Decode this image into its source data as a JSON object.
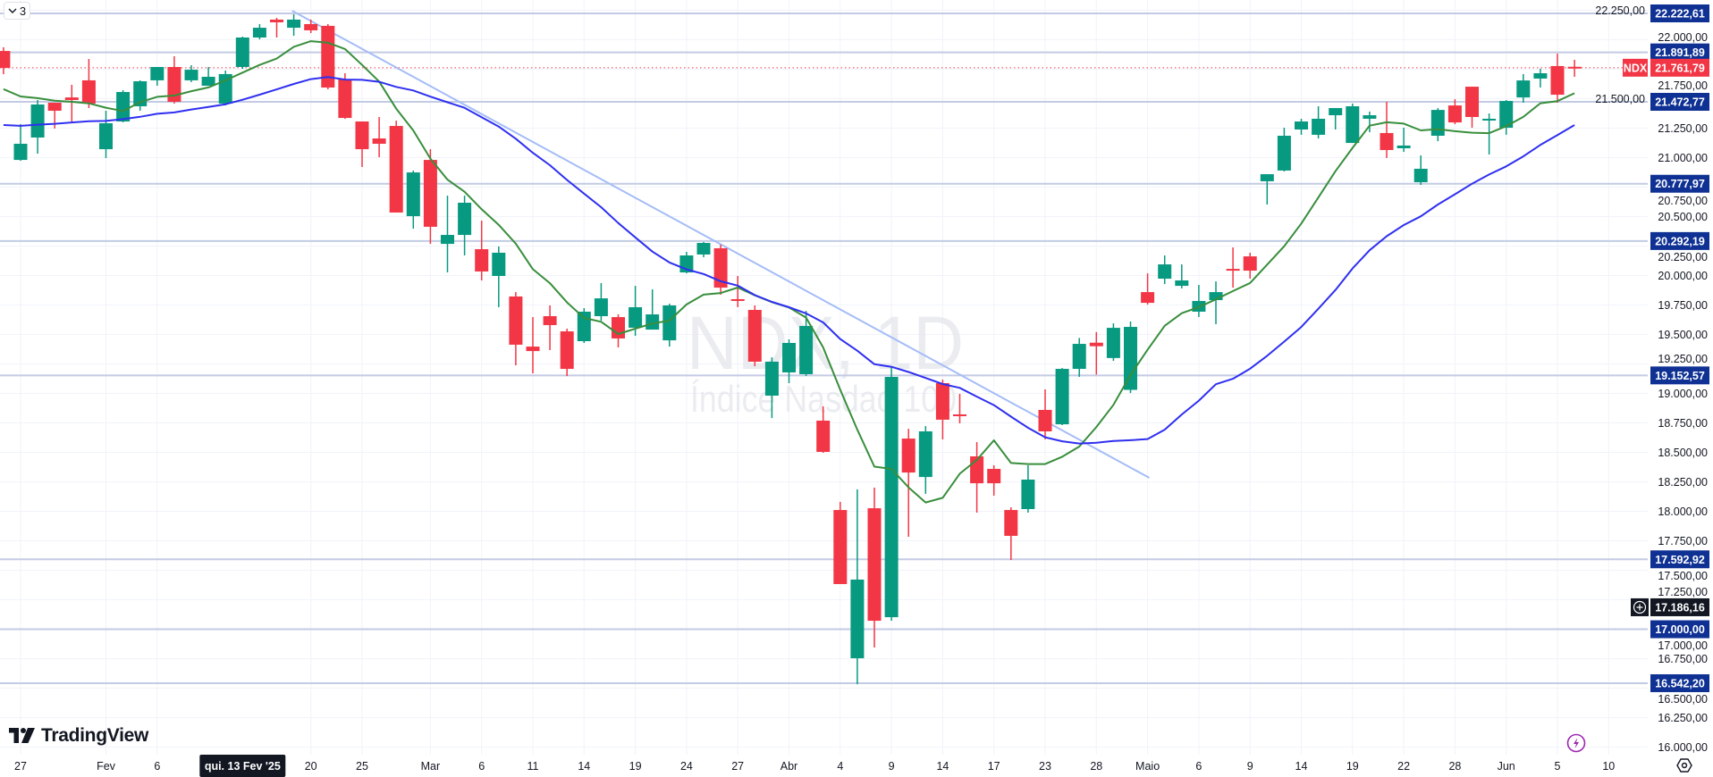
{
  "toolbar": {
    "interval_count": "3"
  },
  "brand": {
    "name": "TradingView"
  },
  "chart_data": {
    "type": "candlestick",
    "symbol": "NDX",
    "watermark_title": "NDX, 1D",
    "watermark_subtitle": "Índice Nasdaq 100",
    "colors": {
      "up": "#089981",
      "down": "#F23645",
      "level": "#0F3194",
      "ma_fast": "#388E3C",
      "ma_slow": "#2F2FF0",
      "trendline": "#A4BCF7"
    },
    "ylim": [
      15910,
      22340
    ],
    "first_index": -1,
    "candles_ohlc": [
      [
        21904,
        21935,
        21707,
        21760
      ],
      [
        20980,
        21283,
        20973,
        21117
      ],
      [
        21170,
        21488,
        21033,
        21450
      ],
      [
        21465,
        21465,
        21246,
        21397
      ],
      [
        21510,
        21617,
        21299,
        21488
      ],
      [
        21655,
        21836,
        21420,
        21458
      ],
      [
        21071,
        21397,
        20996,
        21291
      ],
      [
        21306,
        21571,
        21299,
        21556
      ],
      [
        21435,
        21655,
        21397,
        21647
      ],
      [
        21655,
        21768,
        21609,
        21768
      ],
      [
        21768,
        21859,
        21458,
        21473
      ],
      [
        21655,
        21783,
        21640,
        21745
      ],
      [
        21609,
        21768,
        21609,
        21685
      ],
      [
        21458,
        21738,
        21442,
        21708
      ],
      [
        21768,
        22026,
        21753,
        22018
      ],
      [
        22018,
        22132,
        22003,
        22101
      ],
      [
        22170,
        22185,
        22018,
        22147
      ],
      [
        22101,
        22215,
        22033,
        22170
      ],
      [
        22132,
        22170,
        22056,
        22079
      ],
      [
        22117,
        22132,
        21579,
        21594
      ],
      [
        21662,
        21715,
        21328,
        21336
      ],
      [
        21306,
        21306,
        20920,
        21071
      ],
      [
        21162,
        21344,
        21003,
        21117
      ],
      [
        21268,
        21313,
        20534,
        20534
      ],
      [
        20503,
        20890,
        20397,
        20874
      ],
      [
        20980,
        21071,
        20268,
        20413
      ],
      [
        20268,
        20677,
        20026,
        20344
      ],
      [
        20344,
        20677,
        20170,
        20617
      ],
      [
        20223,
        20465,
        19958,
        20034
      ],
      [
        19996,
        20246,
        19731,
        20193
      ],
      [
        19822,
        19859,
        19238,
        19413
      ],
      [
        19397,
        19647,
        19170,
        19359
      ],
      [
        19655,
        19746,
        19367,
        19579
      ],
      [
        19526,
        19549,
        19147,
        19208
      ],
      [
        19443,
        19723,
        19428,
        19693
      ],
      [
        19655,
        19935,
        19617,
        19806
      ],
      [
        19647,
        19670,
        19390,
        19466
      ],
      [
        19557,
        19912,
        19488,
        19731
      ],
      [
        19541,
        19882,
        19541,
        19670
      ],
      [
        19450,
        19761,
        19397,
        19746
      ],
      [
        20026,
        20200,
        20018,
        20170
      ],
      [
        20178,
        20284,
        20155,
        20276
      ],
      [
        20231,
        20261,
        19837,
        19897
      ],
      [
        19799,
        19996,
        19731,
        19791
      ],
      [
        19708,
        19746,
        19231,
        19269
      ],
      [
        18981,
        19306,
        18791,
        19269
      ],
      [
        19178,
        19458,
        19087,
        19428
      ],
      [
        19163,
        19700,
        19148,
        19572
      ],
      [
        18769,
        18890,
        18496,
        18504
      ],
      [
        18011,
        18080,
        17383,
        17383
      ],
      [
        16754,
        18186,
        16534,
        17421
      ],
      [
        18026,
        18201,
        16845,
        17072
      ],
      [
        17102,
        19223,
        17072,
        19140
      ],
      [
        18617,
        18700,
        17784,
        18329
      ],
      [
        18291,
        18723,
        18148,
        18678
      ],
      [
        19087,
        19117,
        18610,
        18777
      ],
      [
        18822,
        18996,
        18746,
        18815
      ],
      [
        18466,
        18587,
        17989,
        18238
      ],
      [
        18360,
        18390,
        18133,
        18238
      ],
      [
        18011,
        18034,
        17587,
        17792
      ],
      [
        18019,
        18390,
        17989,
        18269
      ],
      [
        18860,
        19034,
        18610,
        18678
      ],
      [
        18738,
        19215,
        18731,
        19208
      ],
      [
        19208,
        19470,
        19140,
        19420
      ],
      [
        19430,
        19520,
        19160,
        19400
      ],
      [
        19300,
        19594,
        19276,
        19556
      ],
      [
        19030,
        19610,
        19003,
        19564
      ],
      [
        19859,
        20018,
        19753,
        19768
      ],
      [
        19973,
        20170,
        19927,
        20094
      ],
      [
        19912,
        20094,
        19890,
        19958
      ],
      [
        19693,
        19920,
        19648,
        19784
      ],
      [
        19791,
        19950,
        19587,
        19859
      ],
      [
        20056,
        20238,
        19897,
        20050
      ],
      [
        20162,
        20193,
        19973,
        20041
      ],
      [
        20799,
        20859,
        20602,
        20859
      ],
      [
        20890,
        21253,
        20882,
        21185
      ],
      [
        21238,
        21329,
        21193,
        21306
      ],
      [
        21193,
        21435,
        21162,
        21329
      ],
      [
        21359,
        21420,
        21238,
        21420
      ],
      [
        21124,
        21458,
        21124,
        21435
      ],
      [
        21329,
        21390,
        21215,
        21359
      ],
      [
        21208,
        21473,
        20996,
        21064
      ],
      [
        21079,
        21253,
        21048,
        21102
      ],
      [
        20791,
        21018,
        20768,
        20905
      ],
      [
        21185,
        21420,
        21139,
        21404
      ],
      [
        21442,
        21495,
        21283,
        21298
      ],
      [
        21601,
        21601,
        21253,
        21344
      ],
      [
        21314,
        21374,
        21026,
        21329
      ],
      [
        21253,
        21488,
        21193,
        21480
      ],
      [
        21510,
        21708,
        21465,
        21654
      ],
      [
        21670,
        21753,
        21594,
        21715
      ],
      [
        21776,
        21882,
        21465,
        21533
      ],
      [
        21770,
        21829,
        21685,
        21762
      ]
    ],
    "indicators": [
      {
        "name": "ma_fast",
        "type": "sma",
        "period": 7,
        "seed": 21550
      },
      {
        "name": "ma_slow",
        "type": "sma",
        "period": 20,
        "seed": 21250
      }
    ],
    "trendline": {
      "start": [
        15.9,
        22245
      ],
      "end": [
        66.1,
        18284
      ]
    },
    "y_ticks": [
      {
        "value": 22250,
        "label": "22.250,00"
      },
      {
        "value": 22000,
        "label": "22.000,00"
      },
      {
        "value": 21750,
        "label": "21.750,00"
      },
      {
        "value": 21500,
        "label": "21.500,00"
      },
      {
        "value": 21250,
        "label": "21.250,00"
      },
      {
        "value": 21000,
        "label": "21.000,00"
      },
      {
        "value": 20750,
        "label": "20.750,00"
      },
      {
        "value": 20500,
        "label": "20.500,00"
      },
      {
        "value": 20250,
        "label": "20.250,00"
      },
      {
        "value": 20000,
        "label": "20.000,00"
      },
      {
        "value": 19750,
        "label": "19.750,00"
      },
      {
        "value": 19500,
        "label": "19.500,00"
      },
      {
        "value": 19250,
        "label": "19.250,00"
      },
      {
        "value": 19000,
        "label": "19.000,00"
      },
      {
        "value": 18750,
        "label": "18.750,00"
      },
      {
        "value": 18500,
        "label": "18.500,00"
      },
      {
        "value": 18250,
        "label": "18.250,00"
      },
      {
        "value": 18000,
        "label": "18.000,00"
      },
      {
        "value": 17750,
        "label": "17.750,00"
      },
      {
        "value": 17500,
        "label": "17.500,00"
      },
      {
        "value": 17250,
        "label": "17.250,00"
      },
      {
        "value": 17000,
        "label": "17.000,00"
      },
      {
        "value": 16750,
        "label": "16.750,00"
      },
      {
        "value": 16500,
        "label": "16.500,00"
      },
      {
        "value": 16250,
        "label": "16.250,00"
      },
      {
        "value": 16000,
        "label": "16.000,00"
      }
    ],
    "price_levels": [
      {
        "value": 22222.61,
        "label": "22.222,61"
      },
      {
        "value": 21891.89,
        "label": "21.891,89"
      },
      {
        "value": 21472.77,
        "label": "21.472,77"
      },
      {
        "value": 20777.97,
        "label": "20.777,97"
      },
      {
        "value": 20292.19,
        "label": "20.292,19"
      },
      {
        "value": 19152.57,
        "label": "19.152,57"
      },
      {
        "value": 17592.92,
        "label": "17.592,92"
      },
      {
        "value": 17000.0,
        "label": "17.000,00"
      },
      {
        "value": 16542.2,
        "label": "16.542,20"
      }
    ],
    "last_price": {
      "symbol": "NDX",
      "value": 21761.79,
      "label": "21.761,79"
    },
    "crosshair_price": {
      "value": 17186.16,
      "label": "17.186,16"
    },
    "x_ticks": [
      {
        "index": 0,
        "label": "27"
      },
      {
        "index": 5,
        "label": "Fev"
      },
      {
        "index": 8,
        "label": "6"
      },
      {
        "index": 17,
        "label": "20"
      },
      {
        "index": 20,
        "label": "25"
      },
      {
        "index": 24,
        "label": "Mar"
      },
      {
        "index": 27,
        "label": "6"
      },
      {
        "index": 30,
        "label": "11"
      },
      {
        "index": 33,
        "label": "14"
      },
      {
        "index": 36,
        "label": "19"
      },
      {
        "index": 39,
        "label": "24"
      },
      {
        "index": 42,
        "label": "27"
      },
      {
        "index": 45,
        "label": "Abr"
      },
      {
        "index": 48,
        "label": "4"
      },
      {
        "index": 51,
        "label": "9"
      },
      {
        "index": 54,
        "label": "14"
      },
      {
        "index": 57,
        "label": "17"
      },
      {
        "index": 60,
        "label": "23"
      },
      {
        "index": 63,
        "label": "28"
      },
      {
        "index": 66,
        "label": "Maio"
      },
      {
        "index": 69,
        "label": "6"
      },
      {
        "index": 72,
        "label": "9"
      },
      {
        "index": 75,
        "label": "14"
      },
      {
        "index": 78,
        "label": "19"
      },
      {
        "index": 81,
        "label": "22"
      },
      {
        "index": 84,
        "label": "28"
      },
      {
        "index": 87,
        "label": "Jun"
      },
      {
        "index": 90,
        "label": "5"
      },
      {
        "index": 93,
        "label": "10"
      }
    ],
    "crosshair_date": {
      "index": 13,
      "label": "qui. 13 Fev '25"
    }
  }
}
